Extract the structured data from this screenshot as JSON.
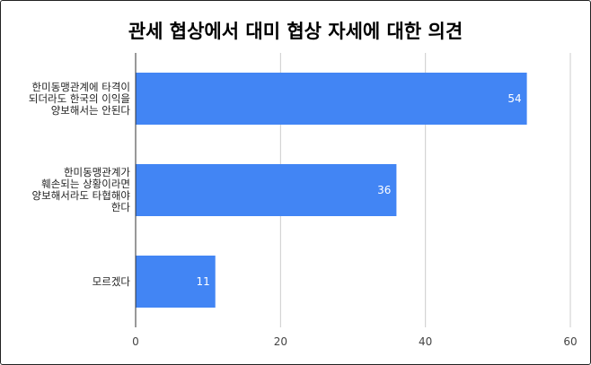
{
  "chart_data": {
    "type": "bar",
    "orientation": "horizontal",
    "title": "관세 협상에서 대미 협상 자세에 대한 의견",
    "categories": [
      [
        "한미동맹관계에 타격이",
        "되더라도 한국의 이익을",
        "양보해서는 안된다"
      ],
      [
        "한미동맹관계가",
        "훼손되는 상황이라면",
        "양보해서라도 타협해야",
        "한다"
      ],
      [
        "모르겠다"
      ]
    ],
    "values": [
      54,
      36,
      11
    ],
    "value_labels": [
      "54",
      "36",
      "11"
    ],
    "xlim": [
      0,
      60
    ],
    "xticks": [
      "0",
      "20",
      "40",
      "60"
    ],
    "grid": true,
    "bar_color": "#4285f4",
    "grid_color": "#cccccc",
    "axis_color": "#333333"
  }
}
